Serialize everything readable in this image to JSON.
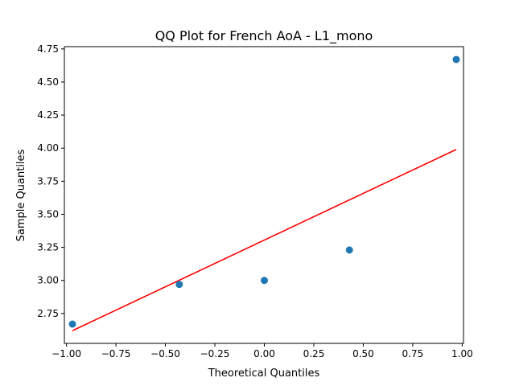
{
  "chart_data": {
    "type": "scatter",
    "title": "QQ Plot for French AoA - L1_mono",
    "xlabel": "Theoretical Quantiles",
    "ylabel": "Sample Quantiles",
    "xlim": [
      -1.0,
      1.0
    ],
    "ylim": [
      2.65,
      4.75
    ],
    "x_ticks": [
      -1.0,
      -0.75,
      -0.5,
      -0.25,
      0.0,
      0.25,
      0.5,
      0.75,
      1.0
    ],
    "x_tick_labels": [
      "−1.00",
      "−0.75",
      "−0.50",
      "−0.25",
      "0.00",
      "0.25",
      "0.50",
      "0.75",
      "1.00"
    ],
    "y_ticks": [
      2.75,
      3.0,
      3.25,
      3.5,
      3.75,
      4.0,
      4.25,
      4.5,
      4.75
    ],
    "y_tick_labels": [
      "2.75",
      "3.00",
      "3.25",
      "3.50",
      "3.75",
      "4.00",
      "4.25",
      "4.50",
      "4.75"
    ],
    "grid": false,
    "points": {
      "x": [
        -0.97,
        -0.43,
        0.0,
        0.43,
        0.97
      ],
      "y": [
        2.67,
        2.97,
        3.0,
        3.23,
        4.67
      ],
      "color": "#1f77b4"
    },
    "reference_line": {
      "x": [
        -0.97,
        0.97
      ],
      "y": [
        2.62,
        3.99
      ],
      "color": "#ff0000"
    }
  }
}
